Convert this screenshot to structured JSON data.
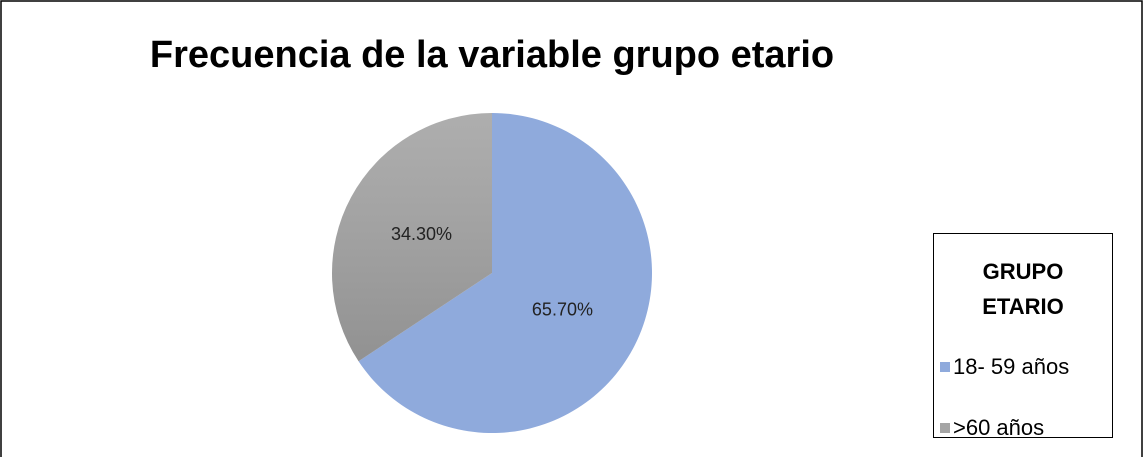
{
  "chart_data": {
    "type": "pie",
    "title": "Frecuencia de la variable grupo etario",
    "legend_title": "GRUPO ETARIO",
    "legend_position": "right",
    "categories": [
      "18- 59 años",
      ">60 años"
    ],
    "values": [
      65.7,
      34.3
    ],
    "value_labels": [
      "65.70%",
      "34.30%"
    ],
    "colors": [
      "#8faadc",
      "#a5a5a5"
    ]
  }
}
